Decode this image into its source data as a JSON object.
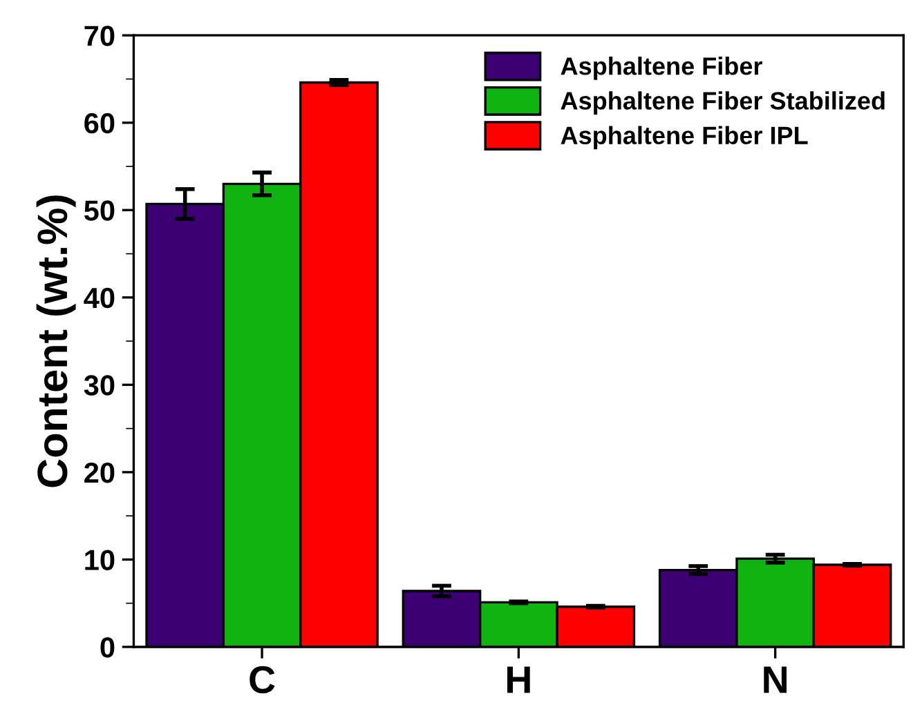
{
  "chart_data": {
    "type": "bar",
    "categories": [
      "C",
      "H",
      "N"
    ],
    "ylabel": "Content (wt.%)",
    "ylim": [
      0,
      70
    ],
    "yticks": [
      0,
      10,
      20,
      30,
      40,
      50,
      60,
      70
    ],
    "grid": false,
    "legend": "top right",
    "series": [
      {
        "name": "Asphaltene Fiber",
        "color": "#3d0074",
        "values": [
          50.7,
          6.4,
          8.8
        ],
        "errors": [
          1.7,
          0.6,
          0.45
        ]
      },
      {
        "name": "Asphaltene Fiber Stabilized",
        "color": "#10b410",
        "values": [
          53.0,
          5.1,
          10.1
        ],
        "errors": [
          1.3,
          0.1,
          0.45
        ]
      },
      {
        "name": "Asphaltene Fiber IPL",
        "color": "#ff0000",
        "values": [
          64.6,
          4.6,
          9.4
        ],
        "errors": [
          0.3,
          0.1,
          0.1
        ]
      }
    ]
  }
}
